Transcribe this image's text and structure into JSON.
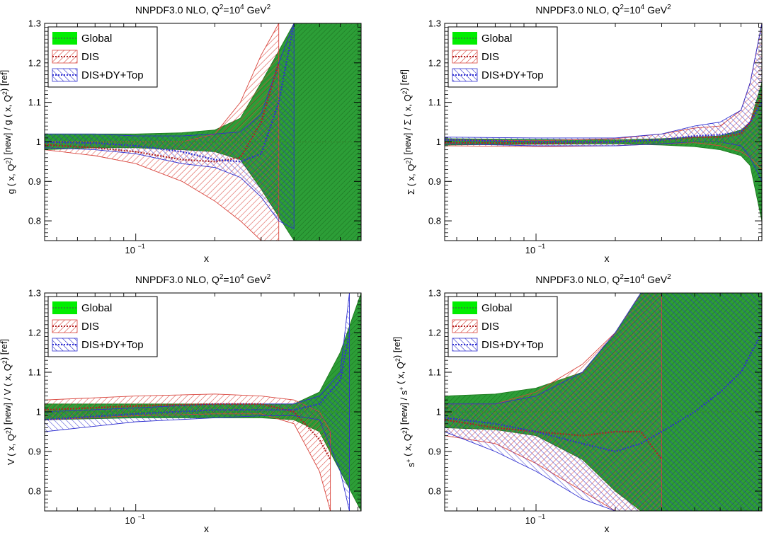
{
  "figure": {
    "background": "#ffffff"
  },
  "legend_styles": [
    {
      "label": "Global",
      "fill": "#00ee00",
      "line": "#2f8f2f",
      "pattern": "solid"
    },
    {
      "label": "DIS",
      "fill": "none",
      "line": "#d9443c",
      "pattern": "hatch-diag"
    },
    {
      "label": "DIS+DY+Top",
      "fill": "none",
      "line": "#3030d0",
      "pattern": "hatch-diag"
    }
  ],
  "chart_data": [
    {
      "type": "area",
      "title_main": "NNPDF3.0 NLO, Q",
      "title_sup1": "2",
      "title_mid": "=10",
      "title_sup2": "4",
      "title_tail": " GeV",
      "title_sup3": "2",
      "xlabel": "x",
      "ylabel": "g ( x, Q^2) [new] / g ( x, Q^2) [ref]",
      "x_scale": "log",
      "xlim": [
        0.045,
        0.72
      ],
      "ylim": [
        0.75,
        1.3
      ],
      "yticks": [
        "0.8",
        "0.9",
        "1",
        "1.1",
        "1.2",
        "1.3"
      ],
      "xtick_base": "10",
      "xtick_exp": "−1",
      "legend": [
        "Global",
        "DIS",
        "DIS+DY+Top"
      ],
      "legend_position": "top-left",
      "series": [
        {
          "name": "Global",
          "x": [
            0.045,
            0.07,
            0.1,
            0.15,
            0.2,
            0.25,
            0.3,
            0.4,
            0.5,
            0.6,
            0.72
          ],
          "upper": [
            1.02,
            1.02,
            1.02,
            1.023,
            1.03,
            1.06,
            1.15,
            1.3,
            1.3,
            1.3,
            1.3
          ],
          "lower": [
            0.98,
            0.985,
            0.985,
            0.98,
            0.975,
            0.955,
            0.88,
            0.75,
            0.75,
            0.75,
            0.75
          ],
          "central": [
            1.0,
            1.0,
            1.0,
            1.0,
            1.0,
            1.0,
            1.0,
            1.0,
            1.0,
            1.0,
            1.0
          ]
        },
        {
          "name": "DIS",
          "x": [
            0.045,
            0.07,
            0.1,
            0.15,
            0.2,
            0.25,
            0.3,
            0.35
          ],
          "upper": [
            1.0,
            1.0,
            1.0,
            1.0,
            1.02,
            1.1,
            1.22,
            1.3
          ],
          "lower": [
            0.98,
            0.965,
            0.945,
            0.9,
            0.85,
            0.8,
            0.75,
            0.75
          ],
          "central": [
            0.993,
            0.985,
            0.975,
            0.955,
            0.95,
            0.96,
            1.05,
            1.2
          ]
        },
        {
          "name": "DIS+DY+Top",
          "x": [
            0.045,
            0.07,
            0.1,
            0.15,
            0.2,
            0.25,
            0.3,
            0.35,
            0.4
          ],
          "upper": [
            1.02,
            1.02,
            1.015,
            1.015,
            1.02,
            1.025,
            1.07,
            1.2,
            1.3
          ],
          "lower": [
            0.985,
            0.98,
            0.97,
            0.945,
            0.935,
            0.91,
            0.86,
            0.8,
            0.78
          ],
          "central": [
            1.0,
            0.997,
            0.99,
            0.975,
            0.955,
            0.95,
            0.97,
            1.1,
            1.3
          ]
        }
      ]
    },
    {
      "type": "area",
      "title_main": "NNPDF3.0 NLO, Q",
      "title_sup1": "2",
      "title_mid": "=10",
      "title_sup2": "4",
      "title_tail": " GeV",
      "title_sup3": "2",
      "xlabel": "x",
      "ylabel": "Σ ( x, Q^2) [new] / Σ ( x, Q^2) [ref]",
      "x_scale": "log",
      "xlim": [
        0.045,
        0.72
      ],
      "ylim": [
        0.75,
        1.3
      ],
      "yticks": [
        "0.8",
        "0.9",
        "1",
        "1.1",
        "1.2",
        "1.3"
      ],
      "xtick_base": "10",
      "xtick_exp": "−1",
      "legend": [
        "Global",
        "DIS",
        "DIS+DY+Top"
      ],
      "legend_position": "top-left",
      "series": [
        {
          "name": "Global",
          "x": [
            0.045,
            0.1,
            0.2,
            0.3,
            0.4,
            0.5,
            0.6,
            0.65,
            0.72
          ],
          "upper": [
            1.008,
            1.006,
            1.005,
            1.008,
            1.012,
            1.015,
            1.03,
            1.05,
            1.15
          ],
          "lower": [
            0.992,
            0.994,
            0.995,
            0.992,
            0.988,
            0.98,
            0.965,
            0.94,
            0.8
          ],
          "central": [
            1.0,
            1.0,
            1.0,
            1.0,
            1.0,
            1.0,
            1.0,
            1.0,
            1.0
          ]
        },
        {
          "name": "DIS",
          "x": [
            0.045,
            0.1,
            0.2,
            0.3,
            0.4,
            0.5,
            0.6,
            0.65,
            0.72
          ],
          "upper": [
            1.005,
            1.003,
            1.008,
            1.02,
            1.035,
            1.04,
            1.08,
            1.15,
            1.3
          ],
          "lower": [
            0.99,
            0.988,
            0.99,
            0.995,
            0.998,
            0.99,
            0.975,
            0.96,
            0.93
          ],
          "central": [
            0.998,
            0.996,
            1.0,
            1.005,
            1.012,
            1.012,
            1.02,
            1.05,
            1.12
          ]
        },
        {
          "name": "DIS+DY+Top",
          "x": [
            0.045,
            0.1,
            0.2,
            0.3,
            0.4,
            0.5,
            0.6,
            0.65,
            0.72
          ],
          "upper": [
            1.012,
            1.01,
            1.01,
            1.02,
            1.04,
            1.05,
            1.08,
            1.15,
            1.3
          ],
          "lower": [
            0.995,
            0.99,
            0.99,
            0.995,
            1.0,
            1.0,
            0.99,
            0.96,
            0.9
          ],
          "central": [
            1.005,
            1.0,
            1.0,
            1.005,
            1.015,
            1.018,
            1.025,
            1.05,
            1.1
          ]
        }
      ]
    },
    {
      "type": "area",
      "title_main": "NNPDF3.0 NLO, Q",
      "title_sup1": "2",
      "title_mid": "=10",
      "title_sup2": "4",
      "title_tail": " GeV",
      "title_sup3": "2",
      "xlabel": "x",
      "ylabel": "V ( x, Q^2) [new] / V ( x, Q^2) [ref]",
      "x_scale": "log",
      "xlim": [
        0.045,
        0.72
      ],
      "ylim": [
        0.75,
        1.3
      ],
      "yticks": [
        "0.8",
        "0.9",
        "1",
        "1.1",
        "1.2",
        "1.3"
      ],
      "xtick_base": "10",
      "xtick_exp": "−1",
      "legend": [
        "Global",
        "DIS",
        "DIS+DY+Top"
      ],
      "legend_position": "top-left",
      "series": [
        {
          "name": "Global",
          "x": [
            0.045,
            0.1,
            0.2,
            0.3,
            0.4,
            0.5,
            0.6,
            0.72
          ],
          "upper": [
            1.02,
            1.02,
            1.02,
            1.02,
            1.02,
            1.05,
            1.15,
            1.3
          ],
          "lower": [
            0.98,
            0.985,
            0.985,
            0.985,
            0.98,
            0.95,
            0.85,
            0.75
          ],
          "central": [
            1.0,
            1.0,
            1.0,
            1.0,
            1.0,
            1.0,
            1.0,
            1.0
          ]
        },
        {
          "name": "DIS",
          "x": [
            0.045,
            0.1,
            0.2,
            0.3,
            0.4,
            0.5,
            0.55
          ],
          "upper": [
            1.03,
            1.04,
            1.045,
            1.04,
            1.03,
            1.0,
            0.95
          ],
          "lower": [
            0.98,
            0.99,
            0.995,
            0.995,
            0.97,
            0.85,
            0.75
          ],
          "central": [
            1.005,
            1.015,
            1.02,
            1.02,
            1.0,
            0.93,
            0.88
          ]
        },
        {
          "name": "DIS+DY+Top",
          "x": [
            0.045,
            0.1,
            0.2,
            0.3,
            0.4,
            0.5,
            0.6,
            0.65
          ],
          "upper": [
            1.0,
            1.01,
            1.02,
            1.02,
            1.02,
            1.04,
            1.1,
            1.3
          ],
          "lower": [
            0.95,
            0.975,
            0.985,
            0.99,
            0.99,
            0.98,
            0.85,
            0.75
          ],
          "central": [
            0.98,
            0.995,
            1.005,
            1.005,
            1.005,
            1.02,
            1.08,
            1.2
          ]
        }
      ]
    },
    {
      "type": "area",
      "title_main": "NNPDF3.0 NLO, Q",
      "title_sup1": "2",
      "title_mid": "=10",
      "title_sup2": "4",
      "title_tail": " GeV",
      "title_sup3": "2",
      "xlabel": "x",
      "ylabel": "s^+ ( x, Q^2) [new] / s^+ ( x, Q^2) [ref]",
      "x_scale": "log",
      "xlim": [
        0.045,
        0.72
      ],
      "ylim": [
        0.75,
        1.3
      ],
      "yticks": [
        "0.8",
        "0.9",
        "1",
        "1.1",
        "1.2",
        "1.3"
      ],
      "xtick_base": "10",
      "xtick_exp": "−1",
      "legend": [
        "Global",
        "DIS",
        "DIS+DY+Top"
      ],
      "legend_position": "top-left",
      "series": [
        {
          "name": "Global",
          "x": [
            0.045,
            0.07,
            0.1,
            0.15,
            0.2,
            0.25,
            0.3,
            0.4,
            0.5,
            0.72
          ],
          "upper": [
            1.04,
            1.045,
            1.06,
            1.1,
            1.2,
            1.3,
            1.3,
            1.3,
            1.3,
            1.3
          ],
          "lower": [
            0.96,
            0.955,
            0.94,
            0.88,
            0.8,
            0.75,
            0.75,
            0.75,
            0.75,
            0.75
          ],
          "central": [
            1.0,
            1.0,
            1.0,
            1.0,
            1.0,
            1.0,
            1.0,
            1.0,
            1.0,
            1.0
          ]
        },
        {
          "name": "DIS",
          "x": [
            0.045,
            0.07,
            0.1,
            0.15,
            0.2,
            0.25,
            0.3
          ],
          "upper": [
            1.02,
            1.02,
            1.05,
            1.12,
            1.2,
            1.3,
            1.3
          ],
          "lower": [
            0.94,
            0.92,
            0.87,
            0.8,
            0.75,
            0.75,
            0.75
          ],
          "central": [
            0.98,
            0.96,
            0.95,
            0.94,
            0.95,
            0.95,
            0.88
          ]
        },
        {
          "name": "DIS+DY+Top",
          "x": [
            0.045,
            0.07,
            0.1,
            0.15,
            0.2,
            0.25,
            0.3,
            0.4,
            0.5,
            0.6,
            0.72
          ],
          "upper": [
            1.02,
            1.02,
            1.04,
            1.1,
            1.2,
            1.3,
            1.3,
            1.3,
            1.3,
            1.3,
            1.3
          ],
          "lower": [
            0.95,
            0.9,
            0.85,
            0.78,
            0.75,
            0.75,
            0.75,
            0.75,
            0.75,
            0.75,
            0.75
          ],
          "central": [
            0.985,
            0.97,
            0.95,
            0.92,
            0.9,
            0.92,
            0.95,
            1.0,
            1.05,
            1.1,
            1.2
          ]
        }
      ]
    }
  ]
}
